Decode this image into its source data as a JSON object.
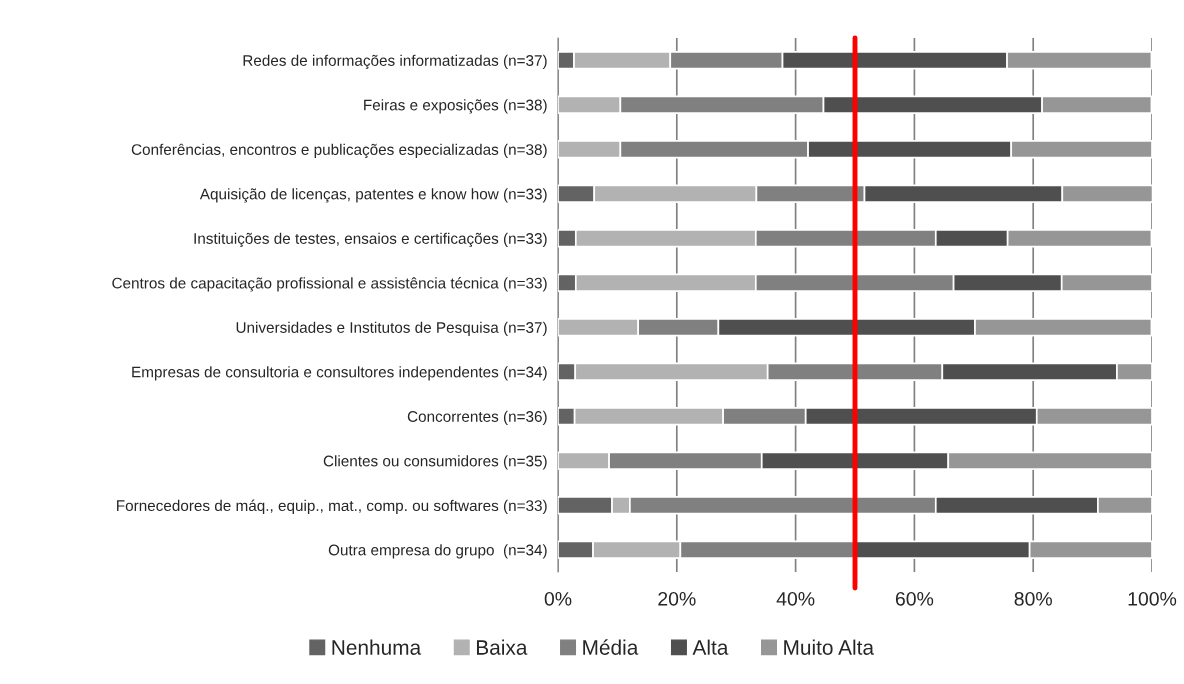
{
  "chart_data": {
    "type": "bar",
    "orientation": "horizontal",
    "stacked": true,
    "categories": [
      "Redes de informações informatizadas (n=37)",
      "Feiras e exposições (n=38)",
      "Conferências, encontros e publicações especializadas (n=38)",
      "Aquisição de licenças, patentes e know how (n=33)",
      "Instituições de testes, ensaios e certificações (n=33)",
      "Centros de capacitação profissional e assistência técnica (n=33)",
      "Universidades e Institutos de Pesquisa (n=37)",
      "Empresas de consultoria e consultores independentes (n=34)",
      "Concorrentes (n=36)",
      "Clientes ou consumidores (n=35)",
      "Fornecedores de máq., equip., mat., comp. ou softwares (n=33)",
      "Outra empresa do grupo  (n=34)"
    ],
    "series": [
      {
        "name": "Nenhuma",
        "color": "#636363",
        "values": [
          2.7,
          0,
          0,
          6.1,
          3.0,
          3.0,
          0,
          2.9,
          2.8,
          0,
          9.1,
          5.9
        ]
      },
      {
        "name": "Baixa",
        "color": "#b2b2b2",
        "values": [
          16.2,
          10.5,
          10.5,
          27.3,
          30.3,
          30.3,
          13.5,
          32.4,
          25.0,
          8.6,
          3.0,
          14.7
        ]
      },
      {
        "name": "Média",
        "color": "#808080",
        "values": [
          18.9,
          34.2,
          31.6,
          18.2,
          30.3,
          33.3,
          13.5,
          29.4,
          13.9,
          25.7,
          51.5,
          29.4
        ]
      },
      {
        "name": "Alta",
        "color": "#4f4f4f",
        "values": [
          37.8,
          36.8,
          34.2,
          33.3,
          12.1,
          18.2,
          43.2,
          29.4,
          38.9,
          31.4,
          27.3,
          29.4
        ]
      },
      {
        "name": "Muito Alta",
        "color": "#969696",
        "values": [
          24.3,
          18.4,
          23.7,
          15.2,
          24.2,
          15.2,
          29.7,
          5.9,
          19.4,
          34.3,
          9.1,
          20.6
        ]
      }
    ],
    "xlim": [
      0,
      100
    ],
    "xticks": [
      {
        "value": 0,
        "label": "0%"
      },
      {
        "value": 20,
        "label": "20%"
      },
      {
        "value": 40,
        "label": "40%"
      },
      {
        "value": 60,
        "label": "60%"
      },
      {
        "value": 80,
        "label": "80%"
      },
      {
        "value": 100,
        "label": "100%"
      }
    ],
    "ref_lines": [
      {
        "axis": "x",
        "value": 50,
        "color": "#ff0000"
      }
    ],
    "grid": "x",
    "legend": "bottom"
  }
}
